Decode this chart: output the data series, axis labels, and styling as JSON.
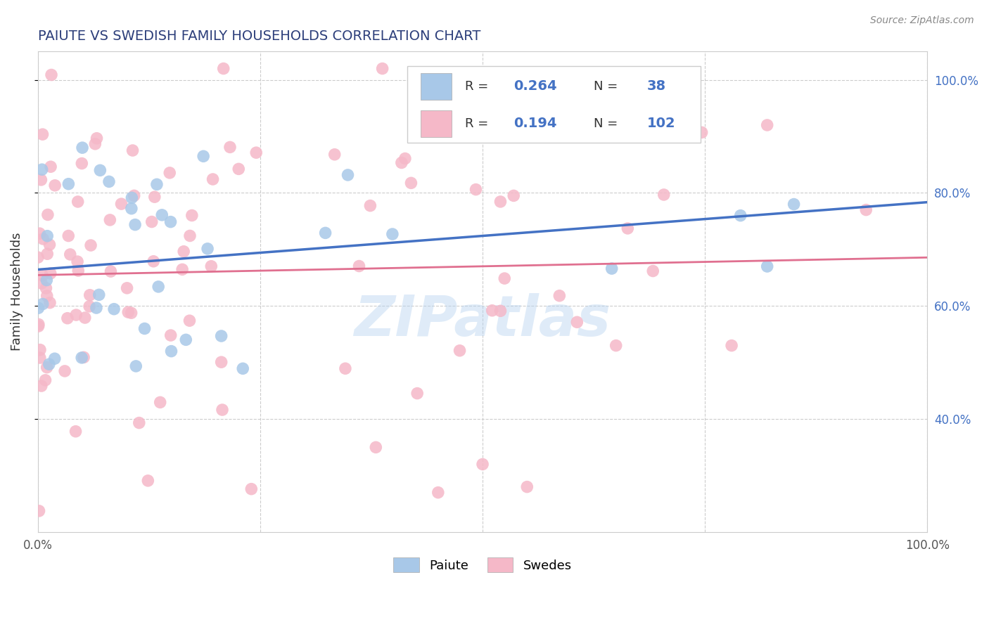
{
  "title": "PAIUTE VS SWEDISH FAMILY HOUSEHOLDS CORRELATION CHART",
  "source": "Source: ZipAtlas.com",
  "ylabel": "Family Households",
  "xlim": [
    0,
    1
  ],
  "ylim": [
    0.2,
    1.05
  ],
  "xtick_positions": [
    0.0,
    1.0
  ],
  "xtick_labels": [
    "0.0%",
    "100.0%"
  ],
  "ytick_right_positions": [
    0.4,
    0.6,
    0.8,
    1.0
  ],
  "ytick_right_labels": [
    "40.0%",
    "60.0%",
    "80.0%",
    "100.0%"
  ],
  "paiute_color": "#a8c8e8",
  "swedes_color": "#f5b8c8",
  "paiute_line_color": "#4472c4",
  "swedes_line_color": "#e07090",
  "watermark": "ZIPatlas",
  "title_color": "#2c3e7a",
  "source_color": "#888888",
  "grid_color": "#cccccc",
  "legend_r1": "R = ",
  "legend_v1": "0.264",
  "legend_n1_label": "N = ",
  "legend_n1_val": "38",
  "legend_r2": "R = ",
  "legend_v2": "0.194",
  "legend_n2_label": "N = ",
  "legend_n2_val": "102",
  "paiute_label": "Paiute",
  "swedes_label": "Swedes"
}
